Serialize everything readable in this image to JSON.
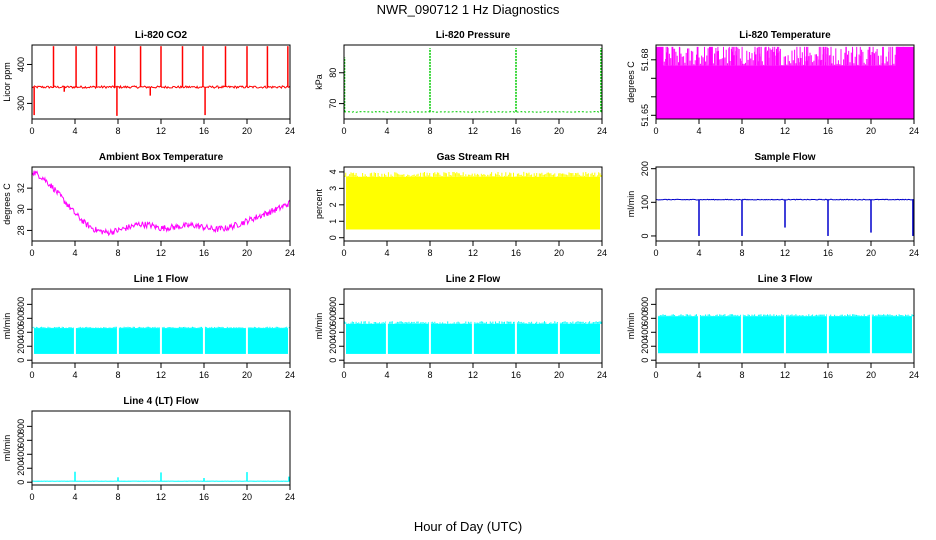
{
  "figure": {
    "title": "NWR_090712  1 Hz Diagnostics",
    "xlabel": "Hour of Day (UTC)"
  },
  "chart_data": [
    {
      "type": "line",
      "title": "Li-820 CO2",
      "ylabel": "Licor ppm",
      "xlim": [
        0,
        24
      ],
      "ylim": [
        260,
        450
      ],
      "xticks": [
        0,
        4,
        8,
        12,
        16,
        20,
        24
      ],
      "yticks": [
        300,
        400
      ],
      "color": "#ff0000",
      "baseline": 342,
      "noise": 6,
      "spikes": [
        {
          "x": 0.2,
          "y": 270
        },
        {
          "x": 2.0,
          "y": 447
        },
        {
          "x": 3.0,
          "y": 330
        },
        {
          "x": 4.1,
          "y": 447
        },
        {
          "x": 6.0,
          "y": 447
        },
        {
          "x": 7.7,
          "y": 447
        },
        {
          "x": 7.9,
          "y": 268
        },
        {
          "x": 10.1,
          "y": 447
        },
        {
          "x": 11.0,
          "y": 320
        },
        {
          "x": 12.0,
          "y": 447
        },
        {
          "x": 14.0,
          "y": 447
        },
        {
          "x": 15.9,
          "y": 447
        },
        {
          "x": 16.1,
          "y": 270
        },
        {
          "x": 18.0,
          "y": 447
        },
        {
          "x": 20.0,
          "y": 447
        },
        {
          "x": 21.9,
          "y": 447
        },
        {
          "x": 23.8,
          "y": 447
        }
      ]
    },
    {
      "type": "line",
      "title": "Li-820 Pressure",
      "ylabel": "kPa",
      "xlim": [
        0,
        24
      ],
      "ylim": [
        65,
        89
      ],
      "xticks": [
        0,
        4,
        8,
        12,
        16,
        20,
        24
      ],
      "yticks": [
        70,
        80
      ],
      "color": "#00cc00",
      "dashed": true,
      "baseline": 67.3,
      "noise": 0.2,
      "spikes": [
        {
          "x": 0.05,
          "y": 85
        },
        {
          "x": 8.0,
          "y": 88
        },
        {
          "x": 16.0,
          "y": 88
        },
        {
          "x": 23.9,
          "y": 88
        }
      ]
    },
    {
      "type": "band",
      "title": "Li-820 Temperature",
      "ylabel": "degrees C",
      "xlim": [
        0,
        24
      ],
      "ylim": [
        51.648,
        51.688
      ],
      "xticks": [
        0,
        4,
        8,
        12,
        16,
        20,
        24
      ],
      "yticks": [
        51.65,
        51.66,
        51.67,
        51.68
      ],
      "ytick_labels": [
        "51.65",
        "",
        "",
        "51.68"
      ],
      "color": "#ff00ff",
      "band": {
        "low": 51.648,
        "high": 51.677,
        "top": 51.687
      },
      "full_segments": [
        [
          0,
          0.7
        ],
        [
          22.3,
          24
        ]
      ]
    },
    {
      "type": "line",
      "title": "Ambient Box Temperature",
      "ylabel": "degrees C",
      "xlim": [
        0,
        24
      ],
      "ylim": [
        27,
        34
      ],
      "xticks": [
        0,
        4,
        8,
        12,
        16,
        20,
        24
      ],
      "yticks": [
        28,
        30,
        32
      ],
      "color": "#ff00ff",
      "noise": 0.6,
      "x": [
        0,
        1,
        2,
        3,
        4,
        5,
        6,
        7,
        8,
        9,
        10,
        11,
        12,
        13,
        14,
        15,
        16,
        17,
        18,
        19,
        20,
        21,
        22,
        23,
        24
      ],
      "y": [
        33.6,
        33.0,
        32.0,
        30.8,
        29.6,
        28.6,
        28.0,
        27.8,
        28.0,
        28.3,
        28.6,
        28.5,
        28.2,
        28.3,
        28.4,
        28.5,
        28.3,
        28.1,
        28.2,
        28.5,
        28.9,
        29.3,
        29.7,
        30.1,
        30.6
      ]
    },
    {
      "type": "band",
      "title": "Gas Stream RH",
      "ylabel": "percent",
      "xlim": [
        0,
        24
      ],
      "ylim": [
        -0.2,
        4.3
      ],
      "xticks": [
        0,
        4,
        8,
        12,
        16,
        20,
        24
      ],
      "yticks": [
        0,
        1,
        2,
        3,
        4
      ],
      "color": "#ffff00",
      "band": {
        "low": 0.5,
        "high": 3.7,
        "top": 4.0
      }
    },
    {
      "type": "line",
      "title": "Sample Flow",
      "ylabel": "ml/min",
      "xlim": [
        0,
        24
      ],
      "ylim": [
        -15,
        205
      ],
      "xticks": [
        0,
        4,
        8,
        12,
        16,
        20,
        24
      ],
      "yticks": [
        0,
        100,
        200
      ],
      "color": "#0000cc",
      "baseline": 108,
      "noise": 2,
      "spikes": [
        {
          "x": 4.0,
          "y": 0
        },
        {
          "x": 8.0,
          "y": 0
        },
        {
          "x": 12.0,
          "y": 25
        },
        {
          "x": 16.0,
          "y": 0
        },
        {
          "x": 20.0,
          "y": 10
        },
        {
          "x": 23.9,
          "y": 0
        }
      ]
    },
    {
      "type": "band",
      "title": "Line 1 Flow",
      "ylabel": "ml/min",
      "xlim": [
        0,
        24
      ],
      "ylim": [
        -40,
        1020
      ],
      "xticks": [
        0,
        4,
        8,
        12,
        16,
        20,
        24
      ],
      "yticks": [
        0,
        200,
        400,
        600,
        800
      ],
      "color": "#00ffff",
      "band": {
        "low": 90,
        "high": 460,
        "top": 480
      },
      "gaps": [
        3.9,
        7.9,
        11.9,
        15.9,
        19.9
      ]
    },
    {
      "type": "band",
      "title": "Line 2 Flow",
      "ylabel": "ml/min",
      "xlim": [
        0,
        24
      ],
      "ylim": [
        -40,
        1020
      ],
      "xticks": [
        0,
        4,
        8,
        12,
        16,
        20,
        24
      ],
      "yticks": [
        0,
        200,
        400,
        600,
        800
      ],
      "color": "#00ffff",
      "band": {
        "low": 90,
        "high": 520,
        "top": 560
      },
      "gaps": [
        3.9,
        7.9,
        11.9,
        15.9,
        19.9
      ]
    },
    {
      "type": "band",
      "title": "Line 3 Flow",
      "ylabel": "ml/min",
      "xlim": [
        0,
        24
      ],
      "ylim": [
        -40,
        1020
      ],
      "xticks": [
        0,
        4,
        8,
        12,
        16,
        20,
        24
      ],
      "yticks": [
        0,
        200,
        400,
        600,
        800
      ],
      "color": "#00ffff",
      "band": {
        "low": 100,
        "high": 630,
        "top": 660
      },
      "gaps": [
        3.9,
        7.9,
        11.9,
        15.9,
        19.9
      ]
    },
    {
      "type": "line",
      "title": "Line 4 (LT) Flow",
      "ylabel": "ml/min",
      "xlim": [
        0,
        24
      ],
      "ylim": [
        -40,
        1020
      ],
      "xticks": [
        0,
        4,
        8,
        12,
        16,
        20,
        24
      ],
      "yticks": [
        0,
        200,
        400,
        600,
        800
      ],
      "color": "#00ffff",
      "baseline": 15,
      "noise": 3,
      "spikes": [
        {
          "x": 4.0,
          "y": 150
        },
        {
          "x": 8.0,
          "y": 70
        },
        {
          "x": 12.0,
          "y": 140
        },
        {
          "x": 16.0,
          "y": 60
        },
        {
          "x": 20.0,
          "y": 145
        },
        {
          "x": 23.9,
          "y": 80
        }
      ]
    }
  ]
}
